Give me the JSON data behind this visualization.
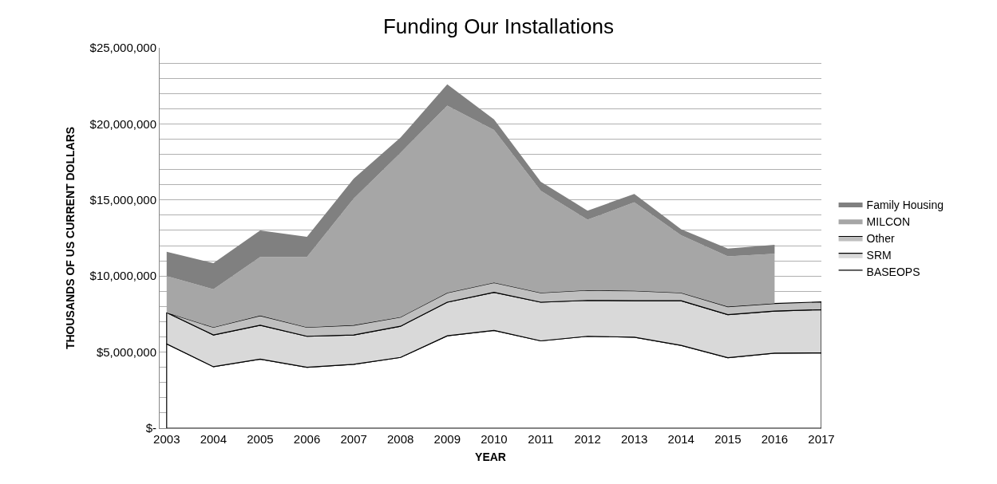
{
  "chart_data": {
    "type": "area",
    "stacked": true,
    "title": "Funding Our Installations",
    "xlabel": "YEAR",
    "ylabel": "THOUSANDS OF US CURRENT DOLLARS",
    "categories": [
      "2003",
      "2004",
      "2005",
      "2006",
      "2007",
      "2008",
      "2009",
      "2010",
      "2011",
      "2012",
      "2013",
      "2014",
      "2015",
      "2016",
      "2017"
    ],
    "series": [
      {
        "name": "BASEOPS",
        "color": "#ffffff",
        "values": [
          5540000,
          4040000,
          4540000,
          4000000,
          4200000,
          4650000,
          6070000,
          6430000,
          5740000,
          6040000,
          5980000,
          5440000,
          4630000,
          4930000,
          4950000
        ]
      },
      {
        "name": "SRM",
        "color": "#d9d9d9",
        "values": [
          2060000,
          2090000,
          2230000,
          2040000,
          1930000,
          2050000,
          2210000,
          2500000,
          2540000,
          2360000,
          2400000,
          2940000,
          2830000,
          2770000,
          2840000
        ]
      },
      {
        "name": "Other",
        "color": "#bfbfbf",
        "values": [
          0,
          500000,
          630000,
          590000,
          640000,
          600000,
          620000,
          640000,
          620000,
          670000,
          650000,
          520000,
          530000,
          500000,
          510000
        ]
      },
      {
        "name": "MILCON",
        "color": "#a6a6a6",
        "values": [
          2400000,
          2500000,
          3860000,
          4630000,
          8330000,
          10800000,
          12300000,
          10030000,
          6700000,
          4630000,
          5820000,
          3780000,
          3310000,
          3260000,
          null
        ]
      },
      {
        "name": "Family Housing",
        "color": "#808080",
        "values": [
          1600000,
          1720000,
          1740000,
          1320000,
          1300000,
          1000000,
          1400000,
          700000,
          600000,
          600000,
          550000,
          400000,
          500000,
          590000,
          null
        ]
      }
    ],
    "ylim": [
      0,
      25000000
    ],
    "yticks": [
      {
        "value": 0,
        "label": "$-"
      },
      {
        "value": 1000000,
        "label": null
      },
      {
        "value": 2000000,
        "label": null
      },
      {
        "value": 3000000,
        "label": null
      },
      {
        "value": 4000000,
        "label": null
      },
      {
        "value": 5000000,
        "label": "$5,000,000"
      },
      {
        "value": 6000000,
        "label": null
      },
      {
        "value": 7000000,
        "label": null
      },
      {
        "value": 8000000,
        "label": null
      },
      {
        "value": 9000000,
        "label": null
      },
      {
        "value": 10000000,
        "label": "$10,000,000"
      },
      {
        "value": 11000000,
        "label": null
      },
      {
        "value": 12000000,
        "label": null
      },
      {
        "value": 13000000,
        "label": null
      },
      {
        "value": 14000000,
        "label": null
      },
      {
        "value": 15000000,
        "label": "$15,000,000"
      },
      {
        "value": 16000000,
        "label": null
      },
      {
        "value": 17000000,
        "label": null
      },
      {
        "value": 18000000,
        "label": null
      },
      {
        "value": 19000000,
        "label": null
      },
      {
        "value": 20000000,
        "label": "$20,000,000"
      },
      {
        "value": 21000000,
        "label": null
      },
      {
        "value": 22000000,
        "label": null
      },
      {
        "value": 23000000,
        "label": null
      },
      {
        "value": 24000000,
        "label": null
      },
      {
        "value": 25000000,
        "label": "$25,000,000"
      }
    ],
    "grid": "y",
    "legend": "right"
  }
}
